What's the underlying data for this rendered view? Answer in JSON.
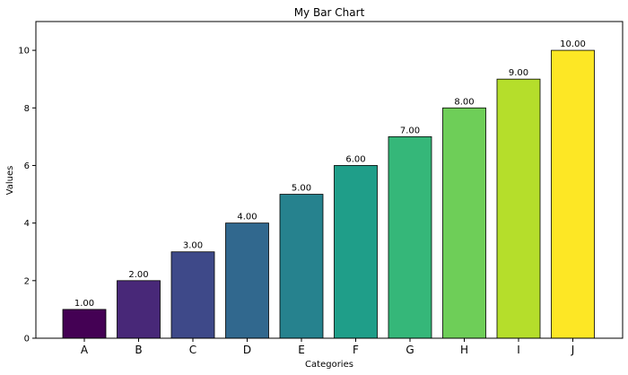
{
  "chart_data": {
    "type": "bar",
    "title": "My Bar Chart",
    "xlabel": "Categories",
    "ylabel": "Values",
    "categories": [
      "A",
      "B",
      "C",
      "D",
      "E",
      "F",
      "G",
      "H",
      "I",
      "J"
    ],
    "values": [
      1,
      2,
      3,
      4,
      5,
      6,
      7,
      8,
      9,
      10
    ],
    "value_labels": [
      "1.00",
      "2.00",
      "3.00",
      "4.00",
      "5.00",
      "6.00",
      "7.00",
      "8.00",
      "9.00",
      "10.00"
    ],
    "colors": [
      "#440154",
      "#482878",
      "#3e4989",
      "#31688e",
      "#26828e",
      "#1f9e89",
      "#35b779",
      "#6ece58",
      "#b5de2b",
      "#fde725"
    ],
    "ylim": [
      0,
      11
    ],
    "yticks": [
      0,
      2,
      4,
      6,
      8,
      10
    ],
    "grid": false,
    "legend": "none"
  }
}
